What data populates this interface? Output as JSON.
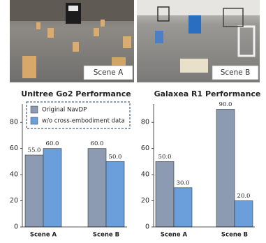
{
  "scenes": [
    "Scene A",
    "Scene B"
  ],
  "chart_data": [
    {
      "type": "bar",
      "title": "Unitree Go2 Performance",
      "categories": [
        "Scene A",
        "Scene B"
      ],
      "series": [
        {
          "name": "Original NavDP",
          "color": "#8c9bb1",
          "values": [
            55,
            60
          ],
          "value_labels": [
            "55.0",
            "60.0"
          ]
        },
        {
          "name": "w/o cross-embodiment data",
          "color": "#6a9fdc",
          "values": [
            60,
            50
          ],
          "value_labels": [
            "60.0",
            "50.0"
          ]
        }
      ],
      "ylim": [
        0,
        94
      ],
      "yticks": [
        0,
        20,
        40,
        60,
        80
      ]
    },
    {
      "type": "bar",
      "title": "Galaxea R1 Performance",
      "categories": [
        "Scene A",
        "Scene B"
      ],
      "series": [
        {
          "color": "#8c9bb1",
          "values": [
            50,
            90
          ],
          "value_labels": [
            "50.0",
            "90.0"
          ]
        },
        {
          "color": "#6a9fdc",
          "values": [
            30,
            20
          ],
          "value_labels": [
            "30.0",
            "20.0"
          ]
        }
      ],
      "ylim": [
        0,
        94
      ],
      "yticks": [
        0,
        20,
        40,
        60,
        80
      ]
    }
  ]
}
